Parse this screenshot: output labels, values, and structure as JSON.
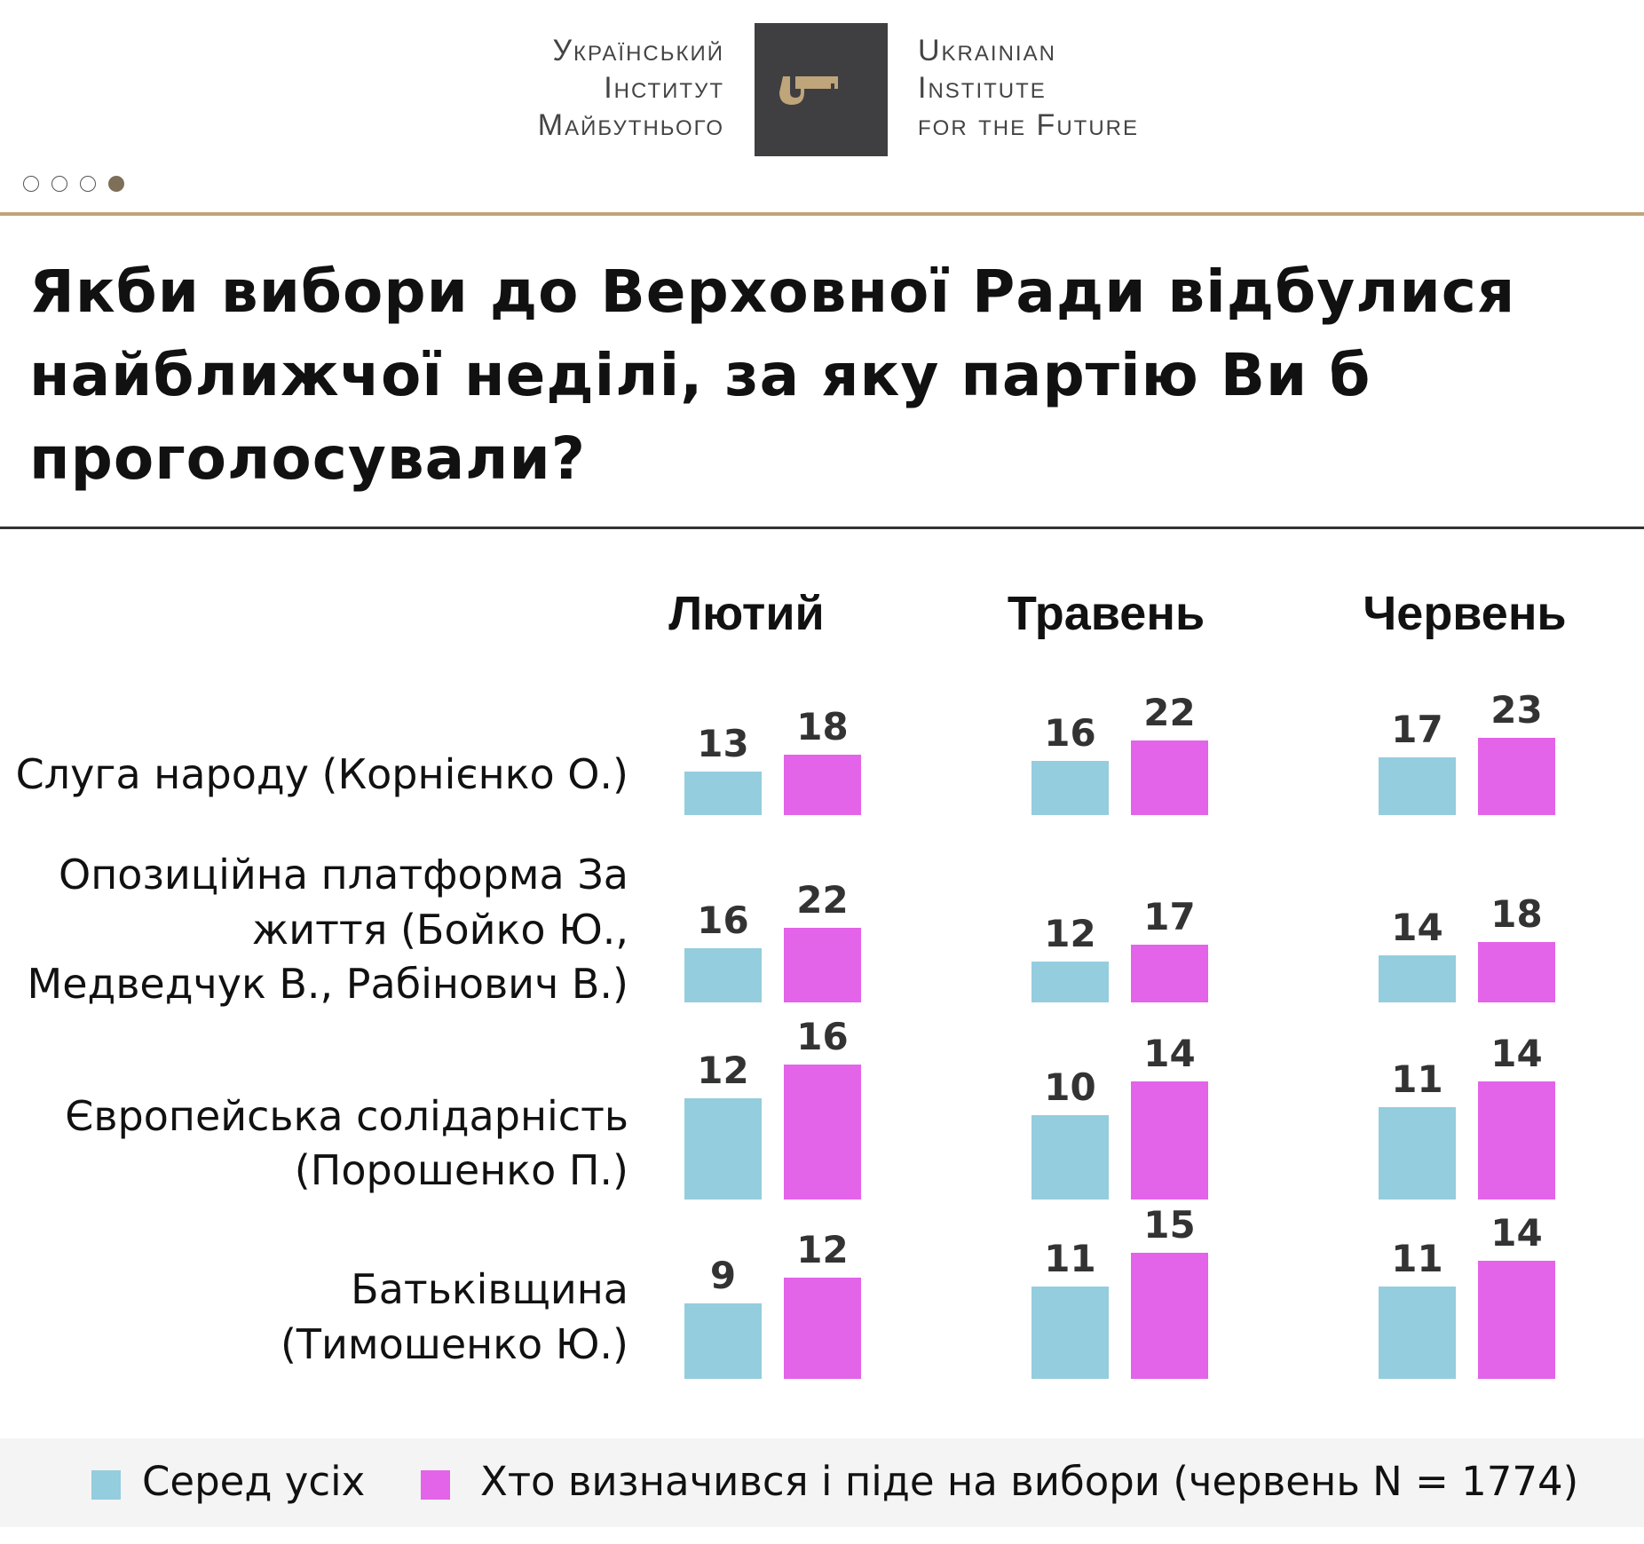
{
  "header": {
    "logo_text_ua": [
      "Український",
      "Інститут",
      "Майбутнього"
    ],
    "logo_text_en": [
      "Ukrainian",
      "Institute",
      "for the Future"
    ],
    "logo_icon": "key-icon",
    "pager": {
      "count": 4,
      "active": 4
    }
  },
  "title": "Якби вибори до Верховної Ради відбулися найближчої неділі, за яку партію Ви б проголосували?",
  "chart_data": {
    "type": "bar",
    "title": "Якби вибори до Верховної Ради відбулися найближчої неділі, за яку партію Ви б проголосували?",
    "groups": [
      "Лютий",
      "Травень",
      "Червень"
    ],
    "categories": [
      "Слуга народу (Корнієнко О.)",
      "Опозиційна платформа За життя (Бойко Ю., Медведчук В.,  Рабінович В.)",
      "Європейська солідарність (Порошенко П.)",
      "Батьківщина (Тимошенко Ю.)"
    ],
    "category_lines": [
      [
        "Слуга народу (Корнієнко О.)"
      ],
      [
        "Опозиційна платформа За",
        "життя (Бойко Ю.,",
        "Медведчук В.,  Рабінович В.)"
      ],
      [
        "Європейська солідарність",
        "(Порошенко П.)"
      ],
      [
        "Батьківщина",
        "(Тимошенко Ю.)"
      ]
    ],
    "series": [
      {
        "name": "Серед усіх",
        "color": "#94cddd",
        "values": [
          [
            13,
            16,
            17
          ],
          [
            16,
            12,
            14
          ],
          [
            12,
            10,
            11
          ],
          [
            9,
            11,
            11
          ]
        ]
      },
      {
        "name": "Хто визначився і піде на вибори (червень N = 1774)",
        "color": "#e363e9",
        "values": [
          [
            18,
            22,
            23
          ],
          [
            22,
            17,
            18
          ],
          [
            16,
            14,
            14
          ],
          [
            12,
            15,
            14
          ]
        ]
      }
    ],
    "legend": "bottom",
    "grid": false
  }
}
